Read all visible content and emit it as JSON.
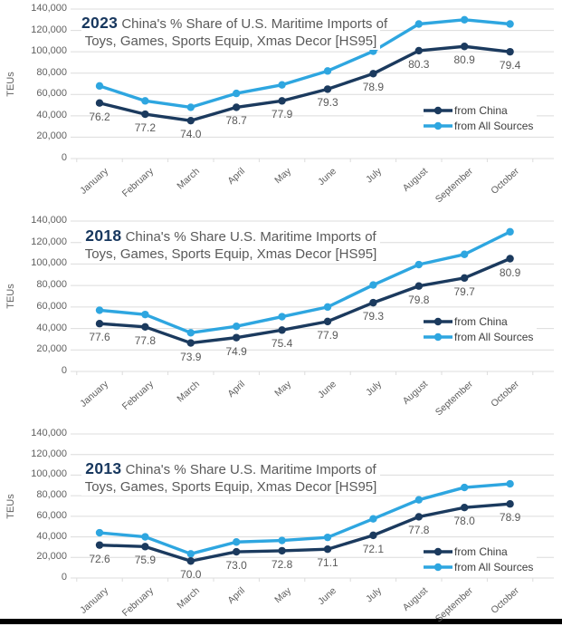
{
  "page": {
    "background": "#ffffff",
    "bottom_bar_color": "#000000"
  },
  "colors": {
    "china": "#1b3a5e",
    "all_sources": "#2ea6e0",
    "grid": "#dcdcdc",
    "title_year": "#17375e",
    "title_text": "#595959",
    "axis_text": "#616161",
    "data_label": "#595959",
    "legend_text": "#3d3d3d"
  },
  "y_axis": {
    "label": "TEUs",
    "tick_labels": [
      "140,000",
      "120,000",
      "100,000",
      "80,000",
      "60,000",
      "40,000",
      "20,000",
      "0"
    ],
    "min": 0,
    "max": 140000
  },
  "chart_data": [
    {
      "type": "line",
      "year": "2023",
      "title": "China's % Share of U.S. Maritime Imports of",
      "title_line2": "Toys, Games, Sports Equip, Xmas Decor [HS95]",
      "xlabel": "",
      "ylabel": "TEUs",
      "ylim": [
        0,
        140000
      ],
      "grid": true,
      "legend_position": "right-middle",
      "categories": [
        "January",
        "February",
        "March",
        "April",
        "May",
        "June",
        "July",
        "August",
        "September",
        "October"
      ],
      "series": [
        {
          "name": "from China",
          "color": "#1b3a5e",
          "values": [
            52000,
            41500,
            35500,
            48000,
            54000,
            65000,
            79500,
            101000,
            105000,
            100000
          ],
          "point_labels": [
            "76.2",
            "77.2",
            "74.0",
            "78.7",
            "77.9",
            "79.3",
            "78.9",
            "80.3",
            "80.9",
            "79.4"
          ]
        },
        {
          "name": "from All Sources",
          "color": "#2ea6e0",
          "values": [
            68000,
            54000,
            48000,
            61000,
            69000,
            82000,
            100500,
            126000,
            130000,
            126000
          ],
          "point_labels": []
        }
      ]
    },
    {
      "type": "line",
      "year": "2018",
      "title": "China's % Share U.S. Maritime Imports of",
      "title_line2": "Toys, Games, Sports Equip, Xmas Decor [HS95]",
      "xlabel": "",
      "ylabel": "TEUs",
      "ylim": [
        0,
        140000
      ],
      "grid": true,
      "legend_position": "right-middle",
      "categories": [
        "January",
        "February",
        "March",
        "April",
        "May",
        "June",
        "July",
        "August",
        "September",
        "October"
      ],
      "series": [
        {
          "name": "from China",
          "color": "#1b3a5e",
          "values": [
            44500,
            41500,
            26500,
            31500,
            38500,
            46500,
            64000,
            79500,
            87000,
            105000
          ],
          "point_labels": [
            "77.6",
            "77.8",
            "73.9",
            "74.9",
            "75.4",
            "77.9",
            "79.3",
            "79.8",
            "79.7",
            "80.9"
          ]
        },
        {
          "name": "from All Sources",
          "color": "#2ea6e0",
          "values": [
            57000,
            53000,
            36000,
            42000,
            51000,
            60000,
            80500,
            99500,
            109000,
            130000
          ],
          "point_labels": []
        }
      ]
    },
    {
      "type": "line",
      "year": "2013",
      "title": "China's % Share U.S. Maritime Imports of",
      "title_line2": "Toys, Games, Sports Equip, Xmas Decor [HS95]",
      "xlabel": "",
      "ylabel": "TEUs",
      "ylim": [
        0,
        140000
      ],
      "grid": true,
      "legend_position": "right-middle",
      "categories": [
        "January",
        "February",
        "March",
        "April",
        "May",
        "June",
        "July",
        "August",
        "September",
        "October"
      ],
      "series": [
        {
          "name": "from China",
          "color": "#1b3a5e",
          "values": [
            32000,
            30500,
            16500,
            25500,
            26500,
            28000,
            41500,
            59500,
            68500,
            72000
          ],
          "point_labels": [
            "72.6",
            "75.9",
            "70.0",
            "73.0",
            "72.8",
            "71.1",
            "72.1",
            "77.8",
            "78.0",
            "78.9"
          ]
        },
        {
          "name": "from All Sources",
          "color": "#2ea6e0",
          "values": [
            44000,
            40000,
            23500,
            35000,
            36500,
            39500,
            57500,
            76000,
            88000,
            91500
          ],
          "point_labels": []
        }
      ]
    }
  ]
}
